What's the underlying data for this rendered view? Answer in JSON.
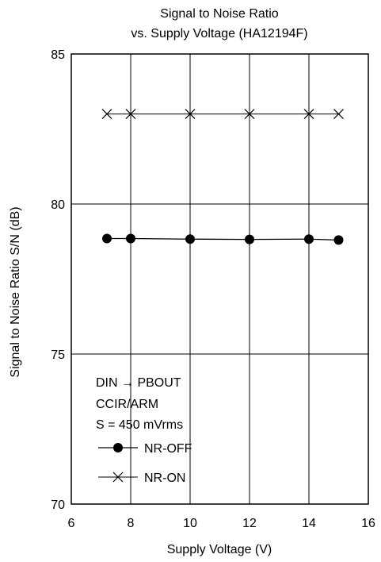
{
  "chart_data": {
    "type": "line",
    "title": "Signal to Noise Ratio",
    "subtitle": "vs. Supply Voltage  (HA12194F)",
    "xlabel": "Supply Voltage  (V)",
    "ylabel": "Signal to Noise Ratio  S/N  (dB)",
    "xlim": [
      6,
      16
    ],
    "ylim": [
      70,
      85
    ],
    "xticks": [
      6,
      8,
      10,
      12,
      14,
      16
    ],
    "yticks": [
      70,
      75,
      80,
      85
    ],
    "grid": true,
    "legend_placement": "bottom-left",
    "conditions": [
      "DIN → PBOUT",
      "CCIR/ARM",
      "S = 450 mVrms"
    ],
    "series": [
      {
        "name": "NR-OFF",
        "marker": "filled-circle",
        "color": "#000000",
        "x": [
          7.2,
          8,
          10,
          12,
          14,
          15
        ],
        "y": [
          78.85,
          78.85,
          78.83,
          78.82,
          78.83,
          78.8
        ]
      },
      {
        "name": "NR-ON",
        "marker": "x-cross",
        "color": "#000000",
        "x": [
          7.2,
          8,
          10,
          12,
          14,
          15
        ],
        "y": [
          83,
          83,
          83,
          83,
          83,
          83
        ]
      }
    ]
  }
}
